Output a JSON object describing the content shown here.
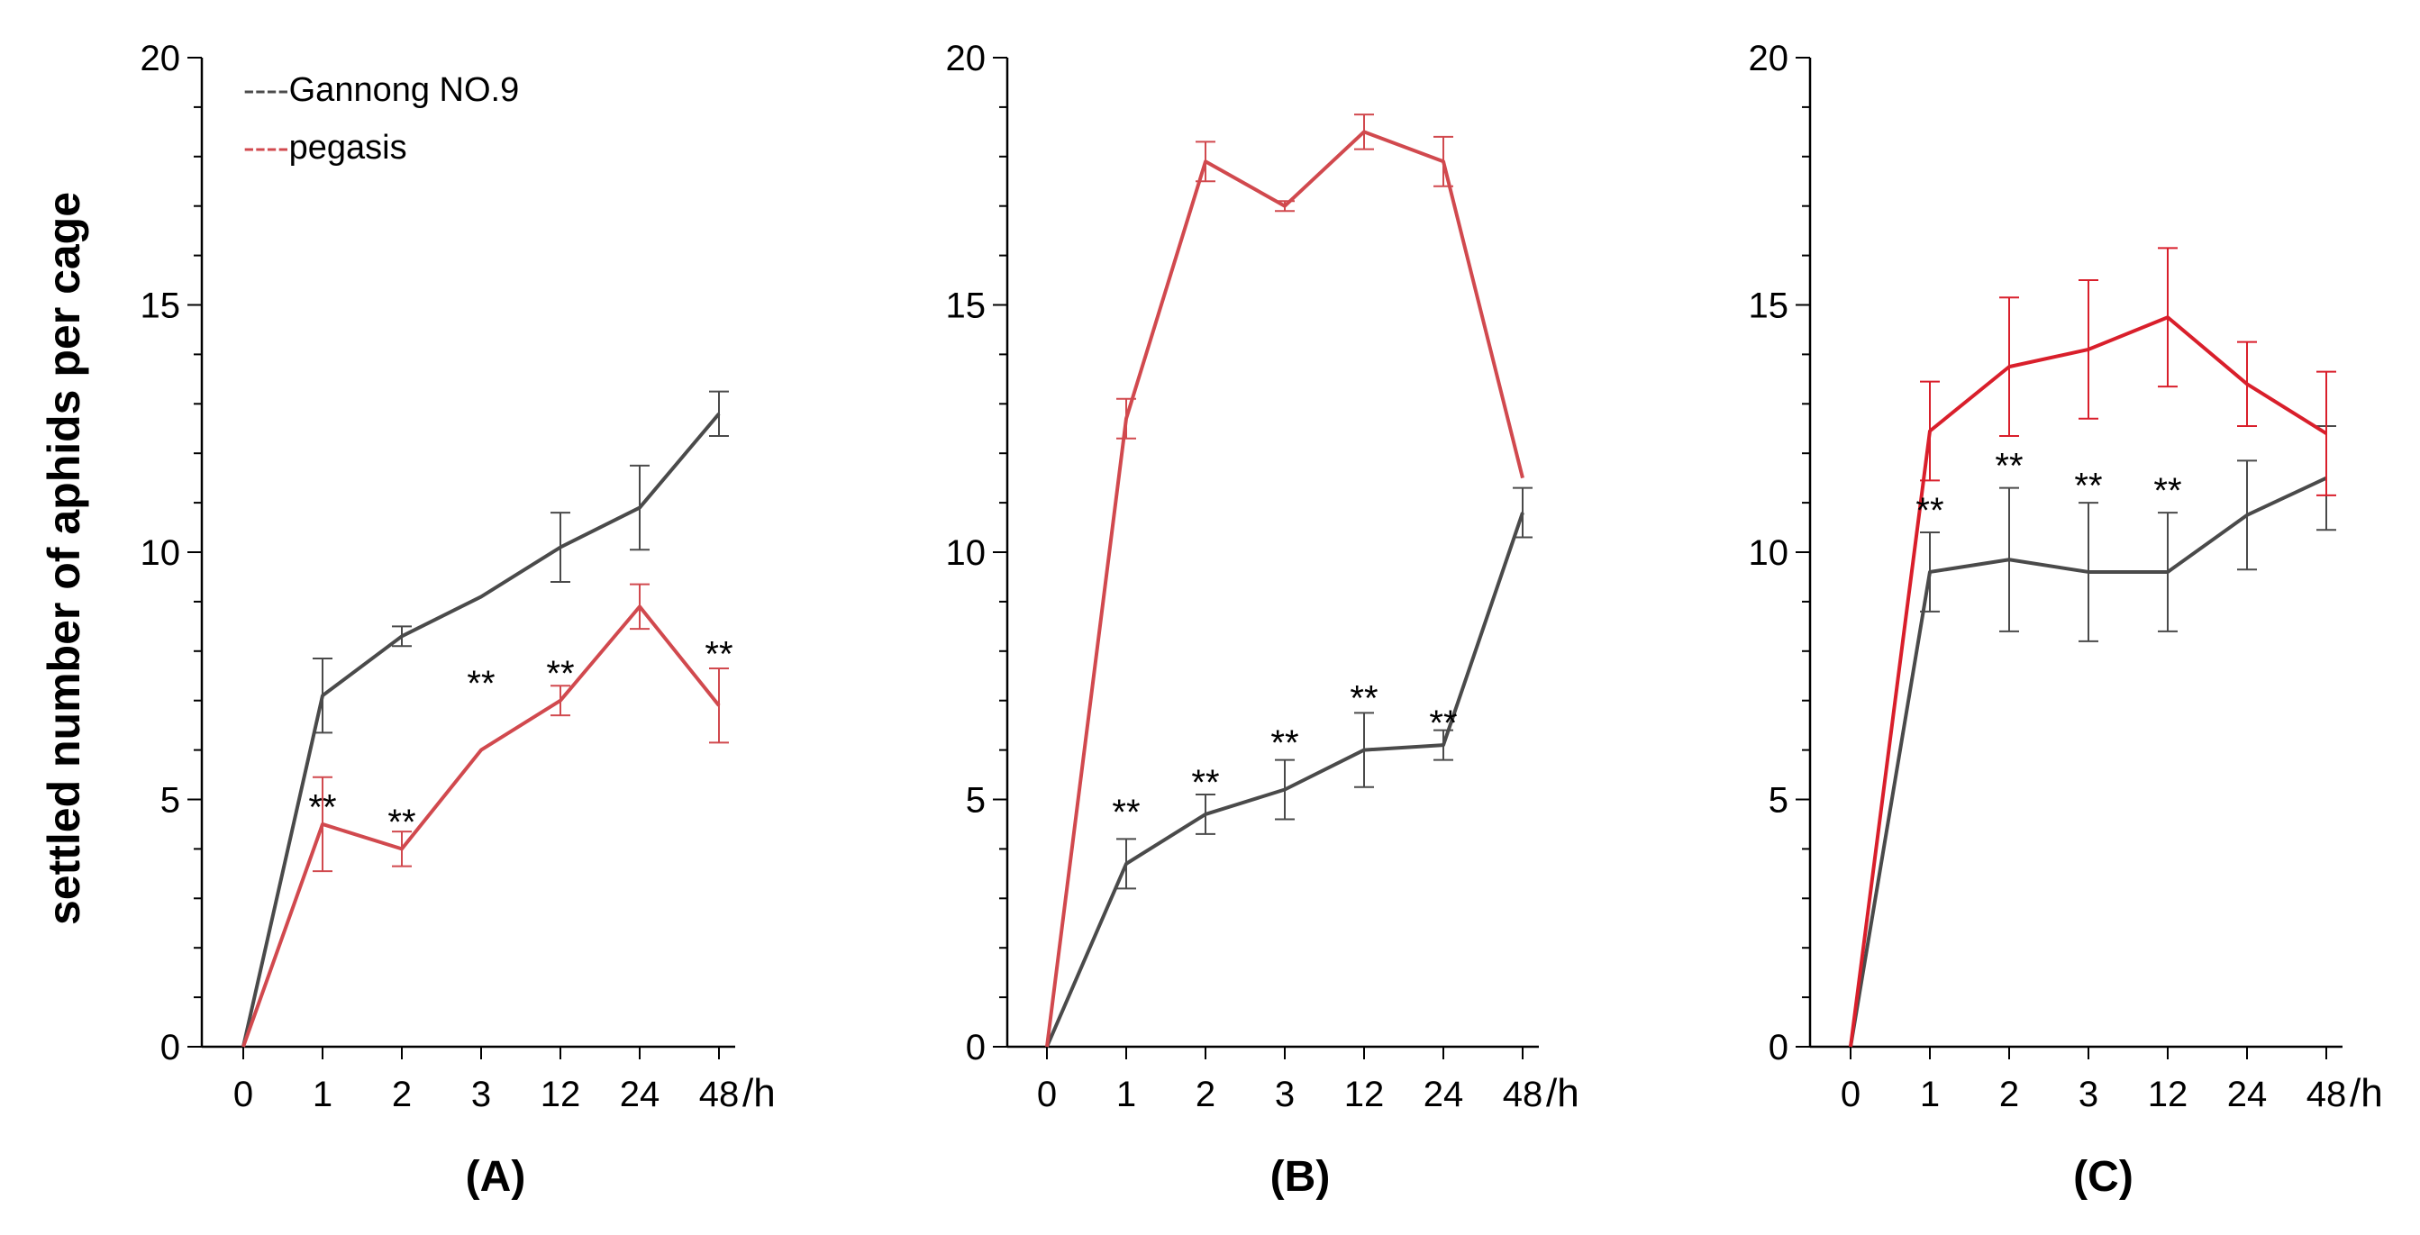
{
  "chart_data": {
    "type": "line",
    "ylabel": "settled number of aphids per cage",
    "x_unit": "/h",
    "legend": [
      {
        "name": "Gannong NO.9",
        "marker": "----",
        "color": "#4a4a4a"
      },
      {
        "name": "pegasis",
        "marker": "----",
        "color": "#d1494e"
      }
    ],
    "categories": [
      "0",
      "1",
      "2",
      "3",
      "12",
      "24",
      "48"
    ],
    "ylim": [
      0,
      20
    ],
    "yticks": [
      0,
      5,
      10,
      15,
      20
    ],
    "panels": [
      {
        "label": "(A)",
        "legend_shown": true,
        "series": [
          {
            "name": "Gannong NO.9",
            "color": "#4a4a4a",
            "values": [
              0,
              7.1,
              8.3,
              9.1,
              10.1,
              10.9,
              12.8
            ],
            "errors": [
              0,
              0.75,
              0.2,
              0,
              0.7,
              0.85,
              0.45
            ]
          },
          {
            "name": "pegasis",
            "color": "#d1494e",
            "values": [
              0,
              4.5,
              4.0,
              6.0,
              7.0,
              8.9,
              6.9
            ],
            "errors": [
              0,
              0.95,
              0.35,
              0,
              0.3,
              0.45,
              0.75
            ]
          }
        ],
        "significance": [
          {
            "x": "1",
            "y": 4.6,
            "text": "**"
          },
          {
            "x": "2",
            "y": 4.3,
            "text": "**"
          },
          {
            "x": "3",
            "y": 7.1,
            "text": "**"
          },
          {
            "x": "12",
            "y": 7.3,
            "text": "**"
          },
          {
            "x": "48",
            "y": 7.7,
            "text": "**"
          }
        ]
      },
      {
        "label": "(B)",
        "legend_shown": false,
        "series": [
          {
            "name": "Gannong NO.9",
            "color": "#4a4a4a",
            "values": [
              0,
              3.7,
              4.7,
              5.2,
              6.0,
              6.1,
              10.8
            ],
            "errors": [
              0,
              0.5,
              0.4,
              0.6,
              0.75,
              0.3,
              0.5
            ]
          },
          {
            "name": "pegasis",
            "color": "#d1494e",
            "values": [
              0,
              12.7,
              17.9,
              17.0,
              18.5,
              17.9,
              11.5
            ],
            "errors": [
              0,
              0.4,
              0.4,
              0.1,
              0.35,
              0.5,
              0
            ]
          }
        ],
        "significance": [
          {
            "x": "1",
            "y": 4.5,
            "text": "**"
          },
          {
            "x": "2",
            "y": 5.1,
            "text": "**"
          },
          {
            "x": "3",
            "y": 5.9,
            "text": "**"
          },
          {
            "x": "12",
            "y": 6.8,
            "text": "**"
          },
          {
            "x": "24",
            "y": 6.3,
            "text": "**"
          }
        ]
      },
      {
        "label": "(C)",
        "legend_shown": false,
        "series": [
          {
            "name": "Gannong NO.9",
            "color": "#4a4a4a",
            "values": [
              0,
              9.6,
              9.85,
              9.6,
              9.6,
              10.75,
              11.5
            ],
            "errors": [
              0,
              0.8,
              1.45,
              1.4,
              1.2,
              1.1,
              1.05
            ]
          },
          {
            "name": "pegasis",
            "color": "#d91f2b",
            "values": [
              0,
              12.45,
              13.75,
              14.1,
              14.75,
              13.4,
              12.4
            ],
            "errors": [
              0,
              1.0,
              1.4,
              1.4,
              1.4,
              0.85,
              1.25
            ]
          }
        ],
        "significance": [
          {
            "x": "1",
            "y": 10.6,
            "text": "**"
          },
          {
            "x": "2",
            "y": 11.5,
            "text": "**"
          },
          {
            "x": "3",
            "y": 11.1,
            "text": "**"
          },
          {
            "x": "12",
            "y": 11.0,
            "text": "**"
          }
        ]
      }
    ]
  }
}
